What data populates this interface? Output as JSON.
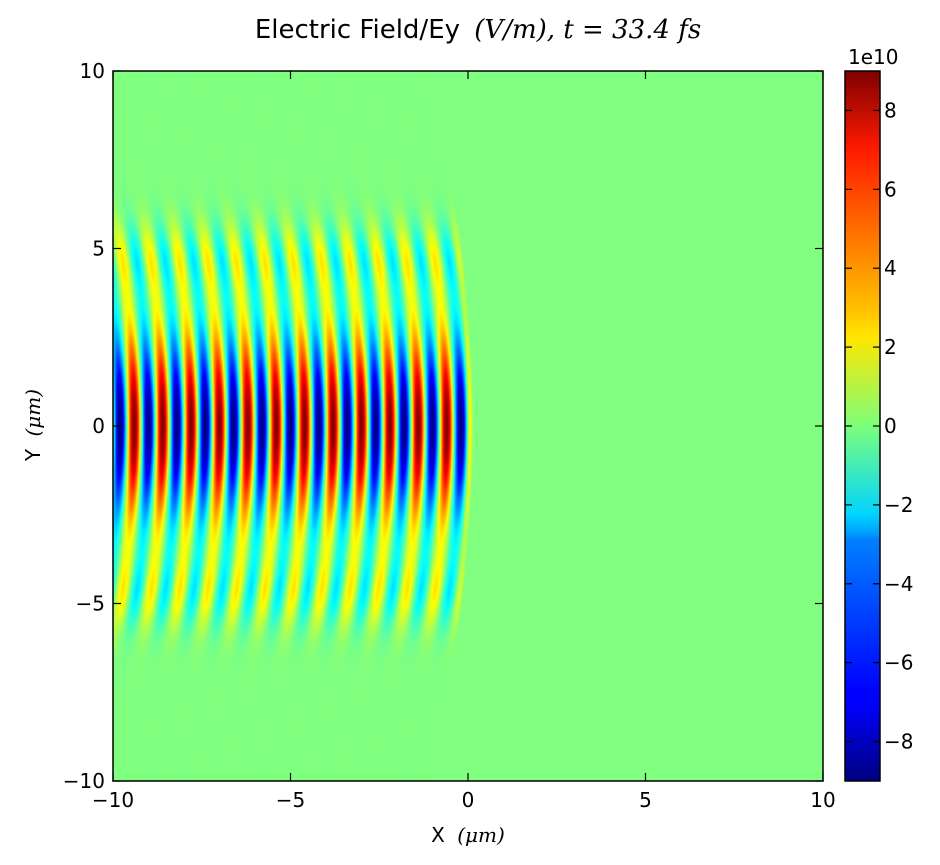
{
  "chart_data": {
    "type": "heatmap",
    "title": "Electric Field/Ey",
    "title_unit": "(V/m), ",
    "title_time": "t = 33.4 fs",
    "xlabel": "X",
    "xlabel_unit": "(μm)",
    "ylabel": "Y",
    "ylabel_unit": "(μm)",
    "xlim": [
      -10,
      10
    ],
    "ylim": [
      -10,
      10
    ],
    "x_ticks": [
      -10,
      -5,
      0,
      5,
      10
    ],
    "y_ticks": [
      -10,
      -5,
      0,
      5,
      10
    ],
    "x_tick_labels": [
      "−10",
      "−5",
      "0",
      "5",
      "10"
    ],
    "y_tick_labels": [
      "−10",
      "−5",
      "0",
      "5",
      "10"
    ],
    "colormap": "jet",
    "colorbar": {
      "range": [
        -9,
        9
      ],
      "multiplier_label": "1e10",
      "ticks": [
        8,
        6,
        4,
        2,
        0,
        -2,
        -4,
        -6,
        -8
      ],
      "tick_labels": [
        "8",
        "6",
        "4",
        "2",
        "0",
        "−2",
        "−4",
        "−6",
        "−8"
      ]
    },
    "field": {
      "description": "laser pulse Ey field, oscillating along x, Gaussian in y",
      "amplitude": 9,
      "x_start": -10,
      "x_front": 0,
      "wavelength": 0.8,
      "waist_y": 2.7,
      "front_curvature": 0.012,
      "background": 0.2
    }
  }
}
